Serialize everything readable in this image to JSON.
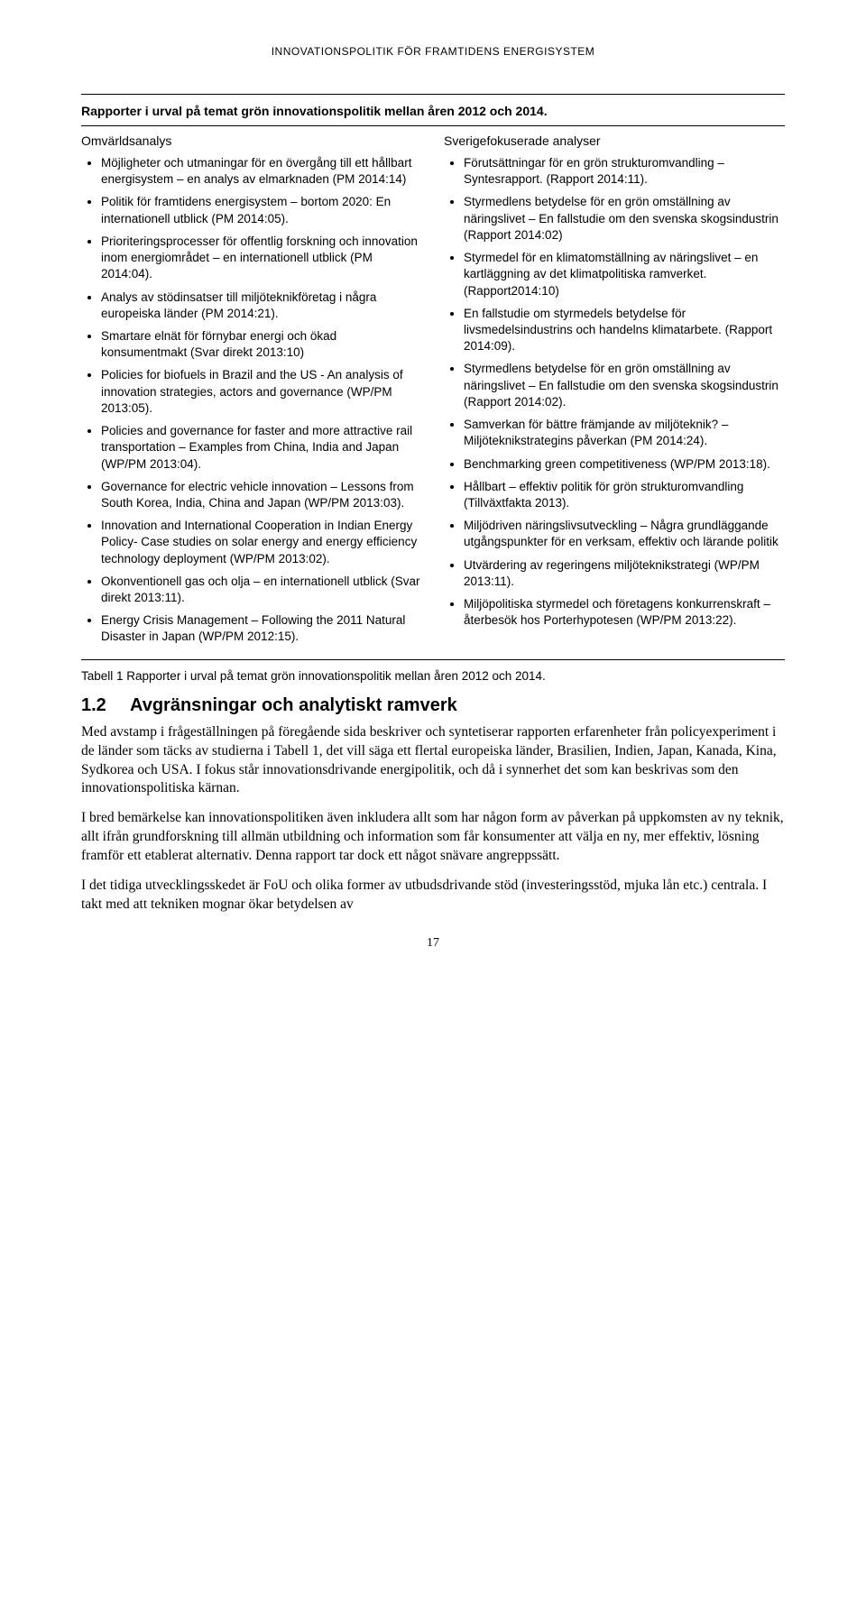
{
  "header": "INNOVATIONSPOLITIK FÖR FRAMTIDENS ENERGISYSTEM",
  "table": {
    "title": "Rapporter i urval på temat grön innovationspolitik mellan åren 2012 och 2014.",
    "left": {
      "heading": "Omvärldsanalys",
      "items": [
        "Möjligheter och utmaningar för en övergång till ett hållbart energisystem – en analys av elmarknaden (PM 2014:14)",
        "Politik för framtidens energisystem – bortom 2020: En internationell utblick (PM 2014:05).",
        "Prioriteringsprocesser för offentlig forskning och innovation inom energiområdet – en internationell utblick (PM 2014:04).",
        "Analys av stödinsatser till miljöteknikföretag i några europeiska länder (PM 2014:21).",
        "Smartare elnät för förnybar energi och ökad konsumentmakt (Svar direkt 2013:10)",
        "Policies for biofuels in Brazil and the US - An analysis of innovation strategies, actors and governance (WP/PM 2013:05).",
        "Policies and governance for faster and more attractive rail transportation – Examples from China, India and Japan (WP/PM 2013:04).",
        "Governance for electric vehicle innovation – Lessons from South Korea, India, China and Japan (WP/PM 2013:03).",
        "Innovation and International Cooperation in Indian Energy Policy- Case studies on solar energy and energy efficiency technology deployment (WP/PM 2013:02).",
        "Okonventionell gas och olja – en internationell utblick (Svar direkt 2013:11).",
        "Energy Crisis Management – Following the 2011 Natural Disaster in Japan (WP/PM 2012:15)."
      ]
    },
    "right": {
      "heading": "Sverigefokuserade analyser",
      "items": [
        "Förutsättningar för en grön strukturomvandling – Syntesrapport. (Rapport 2014:11).",
        "Styrmedlens betydelse för en grön omställning av näringslivet – En fallstudie om den svenska skogsindustrin (Rapport 2014:02)",
        "Styrmedel för en klimatomställning av näringslivet – en kartläggning av det klimatpolitiska ramverket. (Rapport2014:10)",
        "En fallstudie om styrmedels betydelse för livsmedelsindustrins och handelns klimatarbete. (Rapport 2014:09).",
        "Styrmedlens betydelse för en grön omställning av näringslivet – En fallstudie om den svenska skogsindustrin (Rapport 2014:02).",
        "Samverkan för bättre främjande av miljöteknik? – Miljöteknikstrategins påverkan (PM 2014:24).",
        "Benchmarking green competitiveness (WP/PM 2013:18).",
        "Hållbart – effektiv politik för grön strukturomvandling (Tillväxtfakta 2013).",
        "Miljödriven näringslivsutveckling – Några grundläggande utgångspunkter för en verksam, effektiv och lärande politik",
        "Utvärdering av regeringens miljöteknikstrategi (WP/PM 2013:11).",
        "Miljöpolitiska styrmedel och företagens konkurrenskraft – återbesök hos Porterhypotesen (WP/PM 2013:22)."
      ]
    }
  },
  "caption": "Tabell 1 Rapporter i urval på temat grön innovationspolitik mellan åren 2012 och 2014.",
  "section": {
    "num": "1.2",
    "title": "Avgränsningar och analytiskt ramverk"
  },
  "para1": "Med avstamp i frågeställningen på föregående sida beskriver och syntetiserar rapporten erfarenheter från policyexperiment i de länder som täcks av studierna i Tabell 1, det vill säga ett flertal europeiska länder, Brasilien, Indien, Japan, Kanada, Kina, Sydkorea och USA. I fokus står innovationsdrivande energipolitik, och då i synnerhet det som kan beskrivas som den innovationspolitiska kärnan.",
  "para2": "I bred bemärkelse kan innovationspolitiken även inkludera allt som har någon form av påverkan på uppkomsten av ny teknik, allt ifrån grundforskning till allmän utbildning och information som får konsumenter att välja en ny, mer effektiv, lösning framför ett etablerat alternativ. Denna rapport tar dock ett något snävare angreppssätt.",
  "para3": "I det tidiga utvecklingsskedet är FoU och olika former av utbudsdrivande stöd (investeringsstöd, mjuka lån etc.) centrala. I takt med att tekniken mognar ökar betydelsen av",
  "pagenum": "17"
}
